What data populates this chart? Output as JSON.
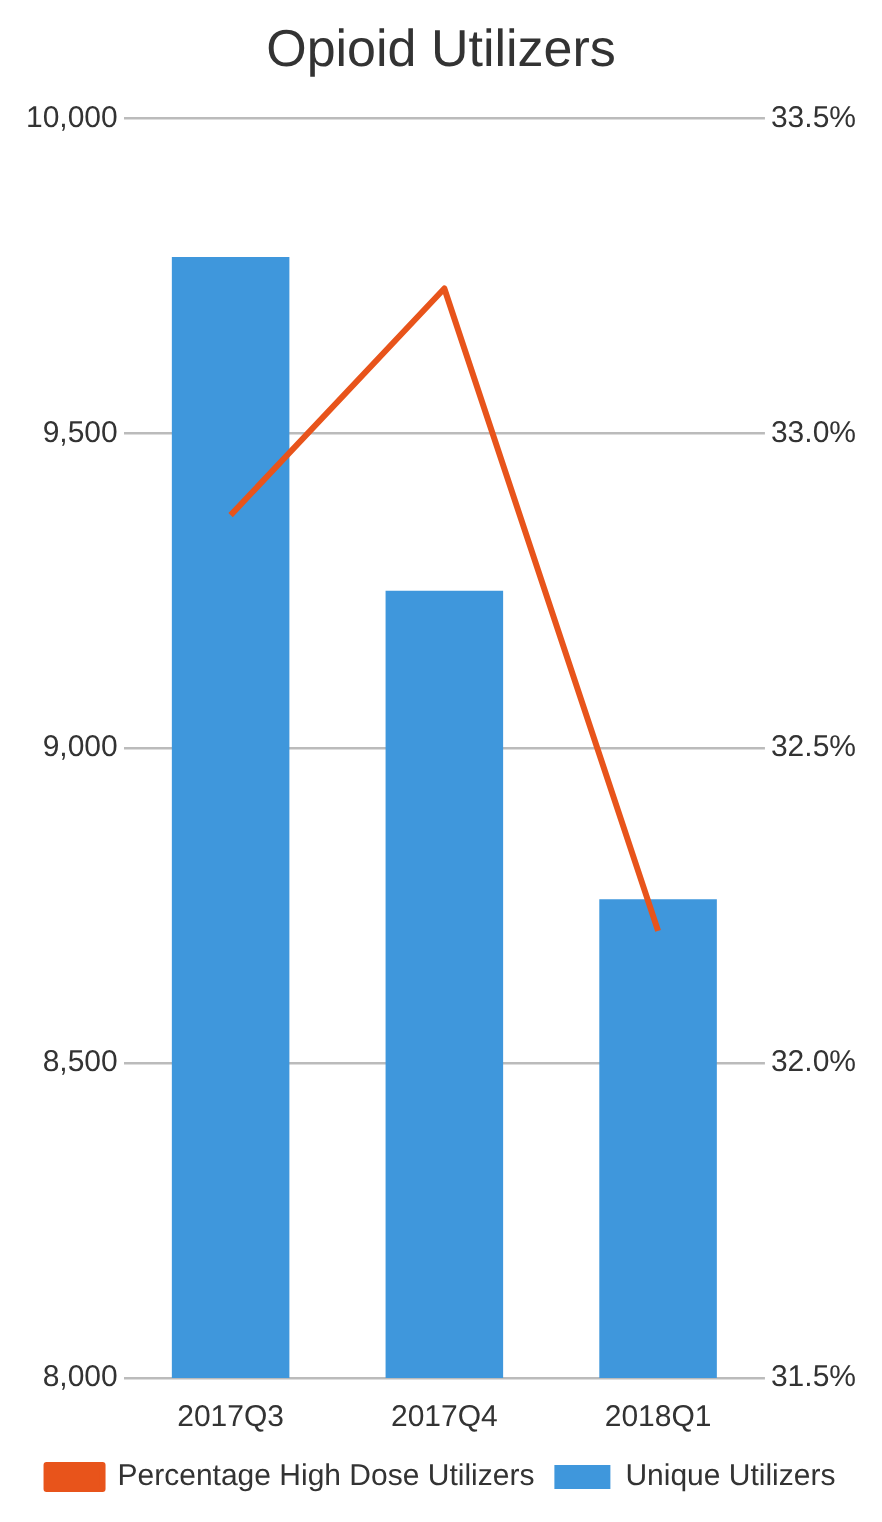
{
  "chart_data": {
    "type": "bar",
    "title": "Opioid Utilizers",
    "categories": [
      "2017Q3",
      "2017Q4",
      "2018Q1"
    ],
    "series": [
      {
        "name": "Unique Utilizers",
        "color": "#3f97dc",
        "values": [
          9780,
          9250,
          8760
        ]
      },
      {
        "name": "Percentage High Dose Utilizers",
        "type": "line",
        "axis": "y2",
        "color": "#e8541b",
        "values": [
          32.87,
          33.23,
          32.21
        ]
      }
    ],
    "ylim": [
      8000,
      10000
    ],
    "yticks": [
      {
        "value": 8000,
        "label": "8,000"
      },
      {
        "value": 8500,
        "label": "8,500"
      },
      {
        "value": 9000,
        "label": "9,000"
      },
      {
        "value": 9500,
        "label": "9,500"
      },
      {
        "value": 10000,
        "label": "10,000"
      }
    ],
    "y2lim": [
      31.5,
      33.5
    ],
    "y2ticks": [
      {
        "value": 31.5,
        "label": "31.5%"
      },
      {
        "value": 32,
        "label": "32.0%"
      },
      {
        "value": 32.5,
        "label": "32.5%"
      },
      {
        "value": 33,
        "label": "33.0%"
      },
      {
        "value": 33.5,
        "label": "33.5%"
      }
    ],
    "grid": "y",
    "legend": "bottom",
    "marker": "none"
  }
}
